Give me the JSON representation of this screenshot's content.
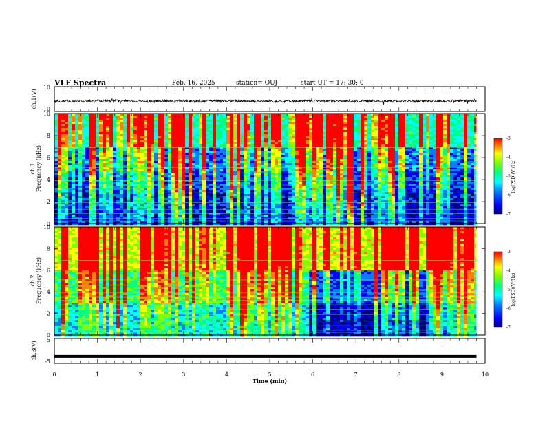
{
  "header": {
    "title": "VLF Spectra",
    "date": "Feb. 16, 2025",
    "station": "station= OUJ",
    "start": "start  UT =   17: 30: 0"
  },
  "colors": {
    "background": "#ffffff",
    "frame": "#000000",
    "trace": "#000000",
    "colormap": [
      "#000080",
      "#0000ff",
      "#0080ff",
      "#00ffff",
      "#00ff80",
      "#80ff00",
      "#ffff00",
      "#ff8000",
      "#ff0000"
    ]
  },
  "chart_data": [
    {
      "type": "line",
      "panel": "ch1-waveform",
      "ylabel": "ch.1(V)",
      "ylim": [
        -10,
        10
      ],
      "ytick_labels": [
        "10",
        "-10"
      ],
      "x_unit": "min",
      "xlim": [
        0,
        9.8
      ],
      "series": [
        {
          "x": [
            0,
            1.0,
            2.0,
            3.0,
            4.0,
            5.0,
            6.0,
            7.0,
            8.0,
            9.0,
            9.8
          ],
          "values": [
            0,
            0,
            0,
            0,
            0,
            0,
            0,
            0,
            0,
            0,
            0
          ]
        }
      ]
    },
    {
      "type": "heatmap",
      "panel": "ch1-spectrogram",
      "ylabel": "ch.1\nFrequency (kHz)",
      "ylim": [
        0,
        10
      ],
      "ytick_labels": [
        "0",
        "2",
        "4",
        "6",
        "8",
        "10"
      ],
      "xlim": [
        0,
        9.8
      ],
      "colorbar": {
        "label": "log(PSD)(V²/Hz)",
        "range": [
          -7,
          -3
        ],
        "tick_labels": [
          "-3",
          "-4",
          "-5",
          "-6",
          "-7"
        ]
      },
      "bands": [
        {
          "from_khz": 0,
          "to_khz": 1.5,
          "level": -6.5
        },
        {
          "from_khz": 1.5,
          "to_khz": 3.0,
          "level": -6.4
        },
        {
          "from_khz": 3.0,
          "to_khz": 4.8,
          "level": -6.2
        },
        {
          "from_khz": 4.8,
          "to_khz": 7.0,
          "level": -5.9
        },
        {
          "from_khz": 7.0,
          "to_khz": 10,
          "level": -5.2
        }
      ]
    },
    {
      "type": "heatmap",
      "panel": "ch2-spectrogram",
      "ylabel": "ch.2\nFrequency (kHz)",
      "ylim": [
        0,
        10
      ],
      "ytick_labels": [
        "0",
        "2",
        "4",
        "6",
        "8",
        "10"
      ],
      "xlim": [
        0,
        9.8
      ],
      "colorbar": {
        "label": "log(PSD)(V²/Hz)",
        "range": [
          -7,
          -3
        ],
        "tick_labels": [
          "-3",
          "-4",
          "-5",
          "-6",
          "-7"
        ]
      },
      "bands": [
        {
          "from_khz": 0,
          "to_khz": 3.0,
          "level": -5.5
        },
        {
          "from_khz": 3.0,
          "to_khz": 6.0,
          "level": -4.9
        },
        {
          "from_khz": 6.0,
          "to_khz": 10,
          "level": -4.3
        }
      ],
      "quiet_interval_min": [
        5.9,
        9.2
      ]
    },
    {
      "type": "line",
      "panel": "ch3-waveform",
      "ylabel": "ch.3(V)",
      "ylim": [
        -5,
        5
      ],
      "ytick_labels": [
        "5",
        "-5"
      ],
      "xlabel": "Time (min)",
      "xlim": [
        0,
        10
      ],
      "xtick_labels": [
        "0",
        "1",
        "2",
        "3",
        "4",
        "5",
        "6",
        "7",
        "8",
        "9",
        "10"
      ],
      "series": [
        {
          "x": [
            0,
            9.8
          ],
          "values": [
            -2.2,
            -2.2
          ]
        }
      ]
    }
  ]
}
